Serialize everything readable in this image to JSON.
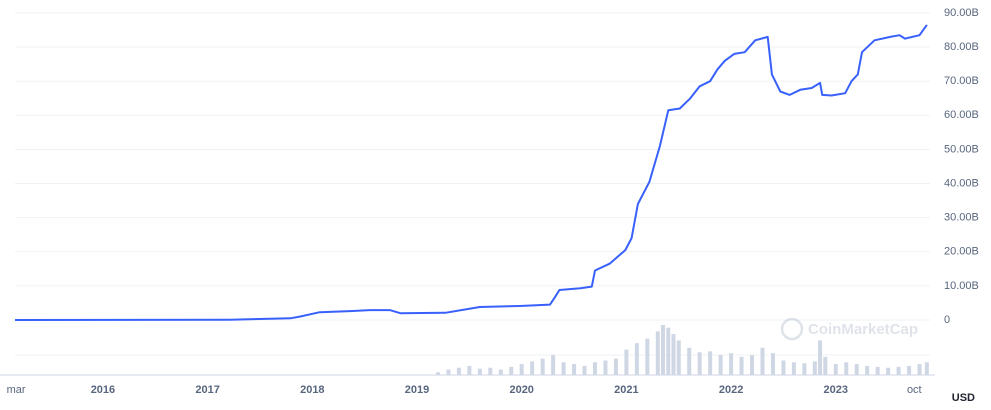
{
  "chart_data": {
    "type": "line",
    "x": [
      2015.16,
      2017.21,
      2017.79,
      2017.88,
      2018.07,
      2018.36,
      2018.55,
      2018.74,
      2018.84,
      2019.27,
      2019.6,
      2019.98,
      2020.27,
      2020.32,
      2020.36,
      2020.56,
      2020.67,
      2020.7,
      2020.84,
      2020.99,
      2021.05,
      2021.11,
      2021.22,
      2021.32,
      2021.4,
      2021.51,
      2021.61,
      2021.7,
      2021.8,
      2021.87,
      2021.94,
      2022.03,
      2022.13,
      2022.23,
      2022.35,
      2022.39,
      2022.47,
      2022.56,
      2022.66,
      2022.77,
      2022.85,
      2022.87,
      2022.96,
      2023.09,
      2023.15,
      2023.21,
      2023.25,
      2023.37,
      2023.52,
      2023.61,
      2023.66,
      2023.8,
      2023.87
    ],
    "series": [
      {
        "color": "#3861fb",
        "values": [
          0,
          0.1,
          0.5,
          1.0,
          2.3,
          2.6,
          2.9,
          2.9,
          2.0,
          2.1,
          3.8,
          4.1,
          4.5,
          6.8,
          8.8,
          9.3,
          9.8,
          14.5,
          16.5,
          20.5,
          24,
          34,
          40.5,
          51,
          61.5,
          62,
          65,
          68.5,
          70,
          73.5,
          76,
          78,
          78.5,
          82,
          83,
          72,
          67,
          66,
          67.5,
          68,
          69.5,
          66,
          65.8,
          66.5,
          70,
          72,
          78.5,
          82,
          83,
          83.5,
          82.5,
          83.5,
          86.5
        ]
      }
    ],
    "volume": {
      "color": "#cfd6e4",
      "x": [
        2019.2,
        2019.3,
        2019.4,
        2019.5,
        2019.6,
        2019.7,
        2019.8,
        2019.9,
        2020.0,
        2020.1,
        2020.2,
        2020.3,
        2020.4,
        2020.5,
        2020.6,
        2020.7,
        2020.8,
        2020.9,
        2021.0,
        2021.1,
        2021.2,
        2021.3,
        2021.35,
        2021.4,
        2021.45,
        2021.5,
        2021.6,
        2021.7,
        2021.8,
        2021.9,
        2022.0,
        2022.1,
        2022.2,
        2022.3,
        2022.4,
        2022.5,
        2022.6,
        2022.7,
        2022.8,
        2022.85,
        2022.9,
        2023.0,
        2023.1,
        2023.2,
        2023.3,
        2023.4,
        2023.5,
        2023.6,
        2023.7,
        2023.8,
        2023.87
      ],
      "values": [
        3,
        6,
        8,
        10,
        7,
        8,
        6,
        9,
        12,
        15,
        18,
        22,
        14,
        12,
        10,
        14,
        16,
        18,
        28,
        35,
        40,
        48,
        55,
        52,
        45,
        38,
        30,
        25,
        26,
        22,
        24,
        20,
        22,
        30,
        24,
        16,
        14,
        13,
        15,
        38,
        20,
        12,
        14,
        12,
        10,
        9,
        8,
        9,
        10,
        12,
        14
      ]
    },
    "ylim": [
      0,
      90
    ],
    "yticks": [
      0,
      {
        "value": 10,
        "label": "10.00B"
      },
      {
        "value": 20,
        "label": "20.00B"
      },
      {
        "value": 30,
        "label": "30.00B"
      },
      {
        "value": 40,
        "label": "40.00B"
      },
      {
        "value": 50,
        "label": "50.00B"
      },
      {
        "value": 60,
        "label": "60.00B"
      },
      {
        "value": 70,
        "label": "70.00B"
      },
      {
        "value": 80,
        "label": "80.00B"
      },
      {
        "value": 90,
        "label": "90.00B"
      }
    ],
    "xlim": [
      2015.16,
      2023.9
    ],
    "xticks": [
      {
        "value": 2015.17,
        "label": "mar"
      },
      2016,
      2017,
      2018,
      2019,
      2020,
      2021,
      2022,
      2023,
      {
        "value": 2023.75,
        "label": "oct"
      }
    ],
    "currency": "USD",
    "watermark": "CoinMarketCap",
    "grid": true
  }
}
